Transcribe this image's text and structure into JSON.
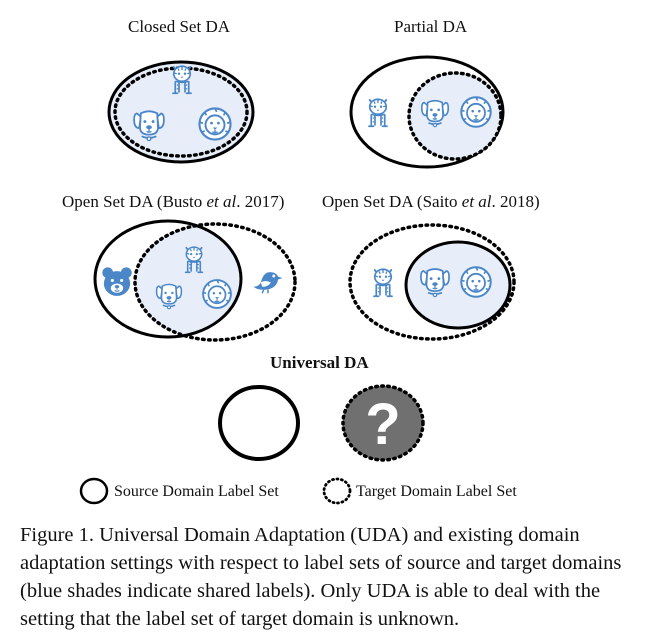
{
  "panels": {
    "closed_set": {
      "title": "Closed Set DA"
    },
    "partial": {
      "title": "Partial DA"
    },
    "open_set_busto": {
      "title_pre": "Open Set DA (Busto ",
      "title_em": "et al",
      "title_post": ". 2017)"
    },
    "open_set_saito": {
      "title_pre": "Open Set DA (Saito ",
      "title_em": "et al",
      "title_post": ". 2018)"
    },
    "universal": {
      "title": "Universal DA",
      "unknown_symbol": "?"
    }
  },
  "legend": {
    "source": "Source Domain Label Set",
    "target": "Target Domain Label Set"
  },
  "caption": "Figure 1. Universal Domain Adaptation (UDA) and existing domain adaptation settings with respect to label sets of source and target domains (blue shades indicate shared labels). Only UDA is able to deal with the setting that the label set of target domain is unknown.",
  "colors": {
    "shared_fill": "#e8eef9",
    "icon_blue": "#4a86c8",
    "unknown_fill": "#707070",
    "outline": "#000000"
  },
  "icons": [
    "tiger-icon",
    "dog-icon",
    "lion-icon",
    "bear-icon",
    "bird-icon"
  ]
}
